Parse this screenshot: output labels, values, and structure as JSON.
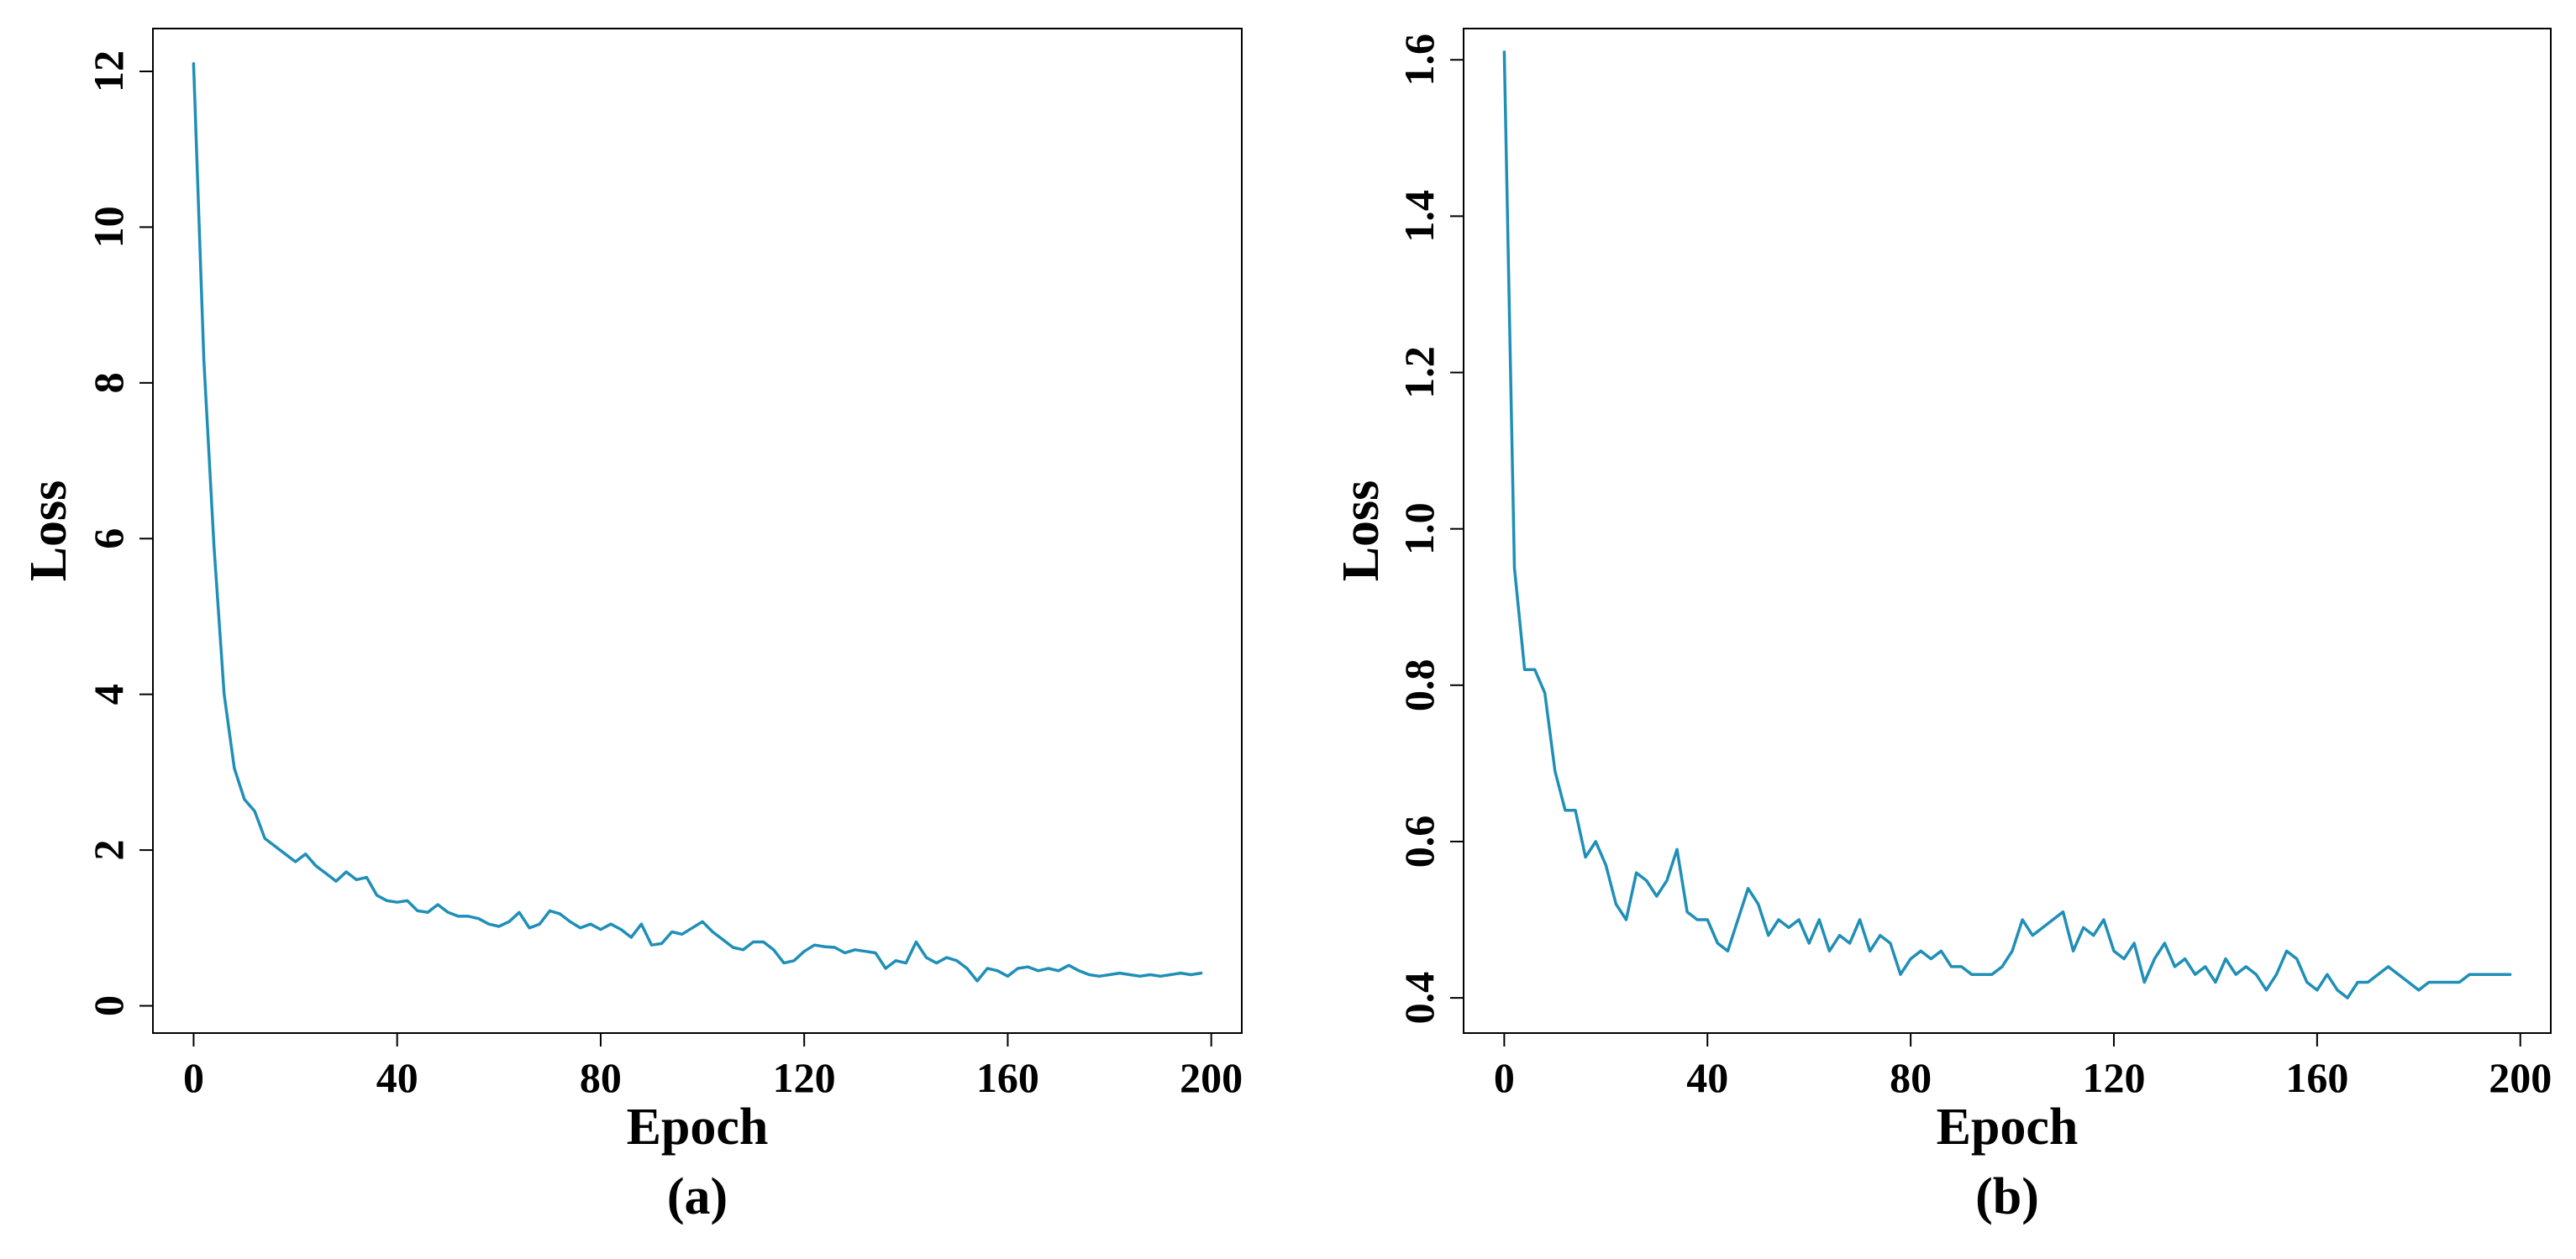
{
  "line_color": "#1f8fb7",
  "chart_data": [
    {
      "type": "line",
      "caption": "(a)",
      "xlabel": "Epoch",
      "ylabel": "Loss",
      "xlim": [
        -8,
        206
      ],
      "ylim": [
        -0.35,
        12.55
      ],
      "xticks": [
        0,
        40,
        80,
        120,
        160,
        200
      ],
      "yticks": [
        0,
        2,
        4,
        6,
        8,
        10,
        12
      ],
      "ytick_labels": [
        "0",
        "2",
        "4",
        "6",
        "8",
        "10",
        "12"
      ],
      "grid": false,
      "x": [
        0,
        2,
        4,
        6,
        8,
        10,
        12,
        14,
        16,
        18,
        20,
        22,
        24,
        26,
        28,
        30,
        32,
        34,
        36,
        38,
        40,
        42,
        44,
        46,
        48,
        50,
        52,
        54,
        56,
        58,
        60,
        62,
        64,
        66,
        68,
        70,
        72,
        74,
        76,
        78,
        80,
        82,
        84,
        86,
        88,
        90,
        92,
        94,
        96,
        98,
        100,
        102,
        104,
        106,
        108,
        110,
        112,
        114,
        116,
        118,
        120,
        122,
        124,
        126,
        128,
        130,
        132,
        134,
        136,
        138,
        140,
        142,
        144,
        146,
        148,
        150,
        152,
        154,
        156,
        158,
        160,
        162,
        164,
        166,
        168,
        170,
        172,
        174,
        176,
        178,
        180,
        182,
        184,
        186,
        188,
        190,
        192,
        194,
        196,
        198
      ],
      "y": [
        12.1,
        8.3,
        5.9,
        4.0,
        3.05,
        2.65,
        2.5,
        2.15,
        2.05,
        1.95,
        1.85,
        1.95,
        1.8,
        1.7,
        1.6,
        1.72,
        1.62,
        1.65,
        1.42,
        1.35,
        1.33,
        1.35,
        1.22,
        1.2,
        1.3,
        1.2,
        1.15,
        1.15,
        1.12,
        1.05,
        1.02,
        1.08,
        1.2,
        1.0,
        1.05,
        1.22,
        1.18,
        1.08,
        1.0,
        1.05,
        0.98,
        1.05,
        0.98,
        0.88,
        1.05,
        0.78,
        0.8,
        0.95,
        0.92,
        1.0,
        1.08,
        0.95,
        0.85,
        0.75,
        0.72,
        0.82,
        0.82,
        0.72,
        0.55,
        0.58,
        0.7,
        0.78,
        0.76,
        0.75,
        0.68,
        0.72,
        0.7,
        0.68,
        0.48,
        0.58,
        0.55,
        0.82,
        0.62,
        0.55,
        0.62,
        0.58,
        0.48,
        0.32,
        0.48,
        0.45,
        0.38,
        0.48,
        0.5,
        0.45,
        0.48,
        0.45,
        0.52,
        0.45,
        0.4,
        0.38,
        0.4,
        0.42,
        0.4,
        0.38,
        0.4,
        0.38,
        0.4,
        0.42,
        0.4,
        0.42
      ]
    },
    {
      "type": "line",
      "caption": "(b)",
      "xlabel": "Epoch",
      "ylabel": "Loss",
      "xlim": [
        -8,
        206
      ],
      "ylim": [
        0.355,
        1.64
      ],
      "xticks": [
        0,
        40,
        80,
        120,
        160,
        200
      ],
      "yticks": [
        0.4,
        0.6,
        0.8,
        1.0,
        1.2,
        1.4,
        1.6
      ],
      "ytick_labels": [
        "0.4",
        "0.6",
        "0.8",
        "1.0",
        "1.2",
        "1.4",
        "1.6"
      ],
      "grid": false,
      "x": [
        0,
        2,
        4,
        6,
        8,
        10,
        12,
        14,
        16,
        18,
        20,
        22,
        24,
        26,
        28,
        30,
        32,
        34,
        36,
        38,
        40,
        42,
        44,
        46,
        48,
        50,
        52,
        54,
        56,
        58,
        60,
        62,
        64,
        66,
        68,
        70,
        72,
        74,
        76,
        78,
        80,
        82,
        84,
        86,
        88,
        90,
        92,
        94,
        96,
        98,
        100,
        102,
        104,
        106,
        108,
        110,
        112,
        114,
        116,
        118,
        120,
        122,
        124,
        126,
        128,
        130,
        132,
        134,
        136,
        138,
        140,
        142,
        144,
        146,
        148,
        150,
        152,
        154,
        156,
        158,
        160,
        162,
        164,
        166,
        168,
        170,
        172,
        174,
        176,
        178,
        180,
        182,
        184,
        186,
        188,
        190,
        192,
        194,
        196,
        198
      ],
      "y": [
        1.61,
        0.95,
        0.82,
        0.82,
        0.79,
        0.69,
        0.64,
        0.64,
        0.58,
        0.6,
        0.57,
        0.52,
        0.5,
        0.56,
        0.55,
        0.53,
        0.55,
        0.59,
        0.51,
        0.5,
        0.5,
        0.47,
        0.46,
        0.5,
        0.54,
        0.52,
        0.48,
        0.5,
        0.49,
        0.5,
        0.47,
        0.5,
        0.46,
        0.48,
        0.47,
        0.5,
        0.46,
        0.48,
        0.47,
        0.43,
        0.45,
        0.46,
        0.45,
        0.46,
        0.44,
        0.44,
        0.43,
        0.43,
        0.43,
        0.44,
        0.46,
        0.5,
        0.48,
        0.49,
        0.5,
        0.51,
        0.46,
        0.49,
        0.48,
        0.5,
        0.46,
        0.45,
        0.47,
        0.42,
        0.45,
        0.47,
        0.44,
        0.45,
        0.43,
        0.44,
        0.42,
        0.45,
        0.43,
        0.44,
        0.43,
        0.41,
        0.43,
        0.46,
        0.45,
        0.42,
        0.41,
        0.43,
        0.41,
        0.4,
        0.42,
        0.42,
        0.43,
        0.44,
        0.43,
        0.42,
        0.41,
        0.42,
        0.42,
        0.42,
        0.42,
        0.43,
        0.43,
        0.43,
        0.43,
        0.43
      ]
    }
  ]
}
